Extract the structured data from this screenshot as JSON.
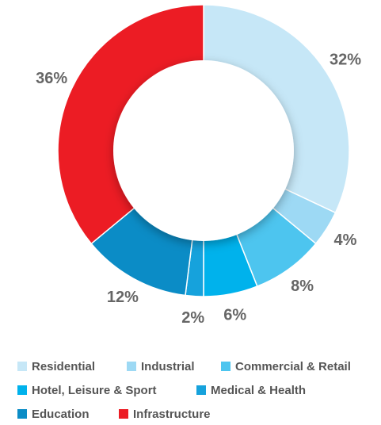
{
  "chart_data": {
    "type": "donut",
    "categories": [
      "Residential",
      "Industrial",
      "Commercial & Retail",
      "Hotel, Leisure & Sport",
      "Medical & Health",
      "Education",
      "Infrastructure"
    ],
    "values": [
      32,
      4,
      8,
      6,
      2,
      12,
      36
    ],
    "value_labels": [
      "32%",
      "4%",
      "8%",
      "6%",
      "2%",
      "12%",
      "36%"
    ],
    "colors": [
      "#c6e7f7",
      "#9dd9f4",
      "#4dc5ef",
      "#00b2ec",
      "#16a2dc",
      "#0b8cc6",
      "#ec1c24"
    ],
    "legend": "bottom"
  }
}
